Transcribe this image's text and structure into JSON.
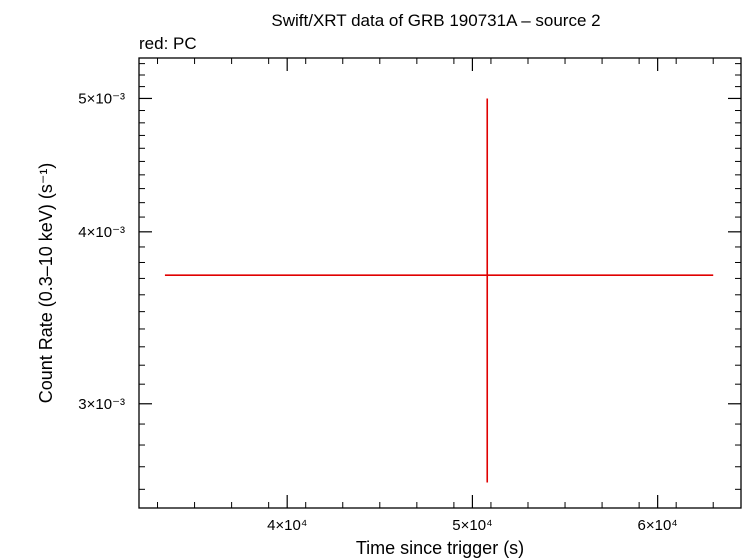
{
  "chart_data": {
    "type": "scatter",
    "title": "Swift/XRT data of GRB 190731A – source 2",
    "subtitle": "red: PC",
    "xlabel": "Time since trigger (s)",
    "ylabel": "Count Rate (0.3–10 keV) (s⁻¹)",
    "x_scale": "linear",
    "y_scale": "log",
    "xlim": [
      32000,
      64500
    ],
    "ylim": [
      0.00252,
      0.00535
    ],
    "x_major_ticks": [
      {
        "value": 40000,
        "label": "4×10⁴"
      },
      {
        "value": 50000,
        "label": "5×10⁴"
      },
      {
        "value": 60000,
        "label": "6×10⁴"
      }
    ],
    "y_major_ticks": [
      {
        "value": 0.003,
        "label": "3×10⁻³"
      },
      {
        "value": 0.004,
        "label": "4×10⁻³"
      },
      {
        "value": 0.005,
        "label": "5×10⁻³"
      }
    ],
    "series": [
      {
        "color": "#e00000",
        "points": [
          {
            "x": 50800,
            "x_low": 33400,
            "x_high": 63000,
            "y": 0.00372,
            "y_low": 0.00263,
            "y_high": 0.005
          }
        ]
      }
    ]
  }
}
